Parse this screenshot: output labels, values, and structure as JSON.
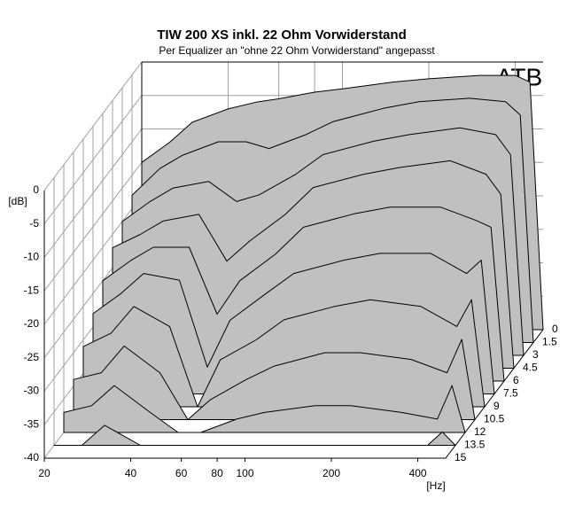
{
  "chart_data": {
    "type": "waterfall",
    "title": "TIW 200 XS inkl. 22 Ohm Vorwiderstand",
    "subtitle": "Per Equalizer an \"ohne 22 Ohm Vorwiderstand\" angepasst",
    "brand": "ATB",
    "y_label": "[dB]",
    "x_label": "[Hz]",
    "xscale": "log",
    "grid": true,
    "color": "#c0c0c0",
    "xlim": [
      20,
      500
    ],
    "xticks": [
      20,
      40,
      60,
      80,
      100,
      200,
      400
    ],
    "ylim": [
      -40,
      0
    ],
    "yticks": [
      0,
      -5,
      -10,
      -15,
      -20,
      -25,
      -30,
      -35,
      -40
    ],
    "zlim": [
      0,
      15
    ],
    "zticks": [
      0,
      1.5,
      3,
      4.5,
      6,
      7.5,
      9,
      10.5,
      12,
      13.5,
      15
    ],
    "x": [
      20,
      25,
      30,
      40,
      50,
      60,
      80,
      100,
      150,
      200,
      300,
      400,
      450,
      500
    ],
    "series": [
      {
        "z": 0,
        "values": [
          -15,
          -12,
          -9,
          -7,
          -6,
          -5.5,
          -4.5,
          -4,
          -3,
          -2.5,
          -2,
          -2,
          -3,
          -40
        ]
      },
      {
        "z": 1.5,
        "values": [
          -18,
          -14,
          -12,
          -10,
          -10,
          -11,
          -9,
          -7,
          -5,
          -4,
          -3.5,
          -4,
          -6,
          -40
        ]
      },
      {
        "z": 3,
        "values": [
          -20,
          -17,
          -15,
          -14,
          -17,
          -16,
          -13,
          -10,
          -8,
          -7,
          -6,
          -7,
          -10,
          -40
        ]
      },
      {
        "z": 4.5,
        "values": [
          -22,
          -20,
          -18,
          -17,
          -24,
          -21,
          -17,
          -13,
          -11,
          -10,
          -9,
          -11,
          -14,
          -40
        ]
      },
      {
        "z": 6,
        "values": [
          -25,
          -22,
          -20,
          -20,
          -30,
          -25,
          -21,
          -17,
          -15,
          -14,
          -14,
          -16,
          -17,
          -40
        ]
      },
      {
        "z": 7.5,
        "values": [
          -28,
          -25,
          -22,
          -23,
          -36,
          -29,
          -25,
          -22,
          -20,
          -19,
          -19,
          -22,
          -20,
          -40
        ]
      },
      {
        "z": 9,
        "values": [
          -31,
          -29,
          -25,
          -28,
          -40,
          -33,
          -30,
          -27,
          -25,
          -24,
          -25,
          -28,
          -24,
          -40
        ]
      },
      {
        "z": 10.5,
        "values": [
          -34,
          -33,
          -29,
          -33,
          -40,
          -37,
          -34,
          -32,
          -30,
          -30,
          -31,
          -33,
          -28,
          -40
        ]
      },
      {
        "z": 12,
        "values": [
          -37,
          -36,
          -33,
          -37,
          -40,
          -40,
          -38,
          -37,
          -36,
          -36,
          -37,
          -38,
          -33,
          -40
        ]
      },
      {
        "z": 13.5,
        "values": [
          -40,
          -40,
          -37,
          -40,
          -40,
          -40,
          -40,
          -40,
          -40,
          -40,
          -40,
          -40,
          -38,
          -40
        ]
      },
      {
        "z": 15,
        "values": [
          -40,
          -40,
          -40,
          -40,
          -40,
          -40,
          -40,
          -40,
          -40,
          -40,
          -40,
          -40,
          -40,
          -40
        ]
      }
    ]
  }
}
